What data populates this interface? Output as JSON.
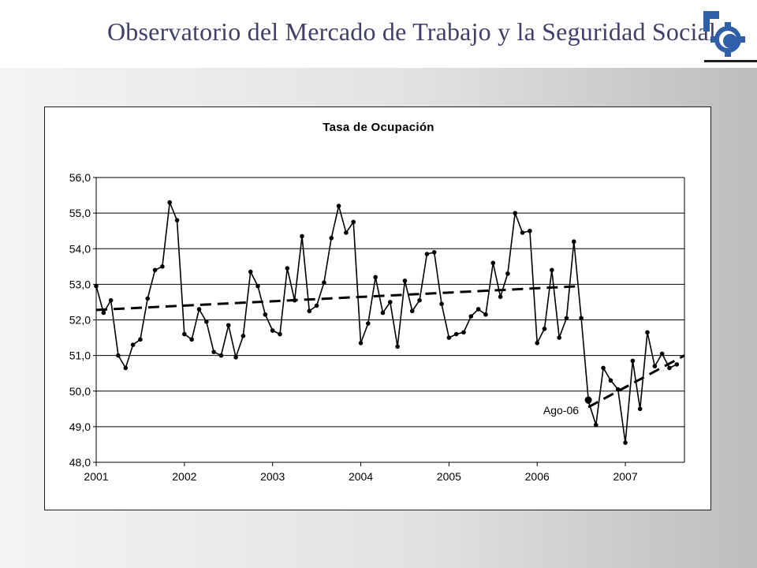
{
  "header": {
    "title": "Observatorio del Mercado de Trabajo y la Seguridad Social",
    "logo_icon": "gear-icon",
    "accent_color": "#2f5fa8"
  },
  "chart_data": {
    "type": "line",
    "title": "Tasa de Ocupación",
    "xlabel": "",
    "ylabel": "",
    "ylim": [
      48.0,
      56.0
    ],
    "yticks": [
      "48,0",
      "49,0",
      "50,0",
      "51,0",
      "52,0",
      "53,0",
      "54,0",
      "55,0",
      "56,0"
    ],
    "xticks": [
      "2001",
      "2002",
      "2003",
      "2004",
      "2005",
      "2006",
      "2007"
    ],
    "xlim": [
      2001.0,
      2007.67
    ],
    "grid": "horizontal",
    "legend": "none",
    "annotation": {
      "text": "Ago-06",
      "x": 2006.58,
      "y": 49.75
    },
    "series": [
      {
        "style": "solid-markers",
        "color": "#000000",
        "x_start": 2001.0,
        "x_step": 0.08333,
        "values": [
          52.95,
          52.2,
          52.55,
          51.0,
          50.65,
          51.3,
          51.45,
          52.6,
          53.4,
          53.5,
          55.3,
          54.8,
          51.6,
          51.45,
          52.3,
          51.95,
          51.1,
          51.0,
          51.85,
          50.95,
          51.55,
          53.35,
          52.95,
          52.15,
          51.7,
          51.6,
          53.45,
          52.55,
          54.35,
          52.25,
          52.4,
          53.05,
          54.3,
          55.2,
          54.45,
          54.75,
          51.35,
          51.9,
          53.2,
          52.2,
          52.5,
          51.25,
          53.1,
          52.25,
          52.55,
          53.85,
          53.9,
          52.45,
          51.5,
          51.6,
          51.65,
          52.1,
          52.3,
          52.15,
          53.6,
          52.65,
          53.3,
          55.0,
          54.45,
          54.5,
          51.35,
          51.75,
          53.4,
          51.5,
          52.05,
          54.2,
          52.05,
          49.7,
          49.05,
          50.65,
          50.3,
          50.05,
          48.55,
          50.85,
          49.5,
          51.65,
          50.7,
          51.05,
          50.65,
          50.75
        ]
      },
      {
        "style": "dashed-trend",
        "color": "#000000",
        "x": [
          2001.0,
          2006.5
        ],
        "values": [
          52.28,
          52.95
        ]
      },
      {
        "style": "dashed-trend",
        "color": "#000000",
        "x": [
          2006.58,
          2007.67
        ],
        "values": [
          49.55,
          51.0
        ]
      }
    ]
  }
}
